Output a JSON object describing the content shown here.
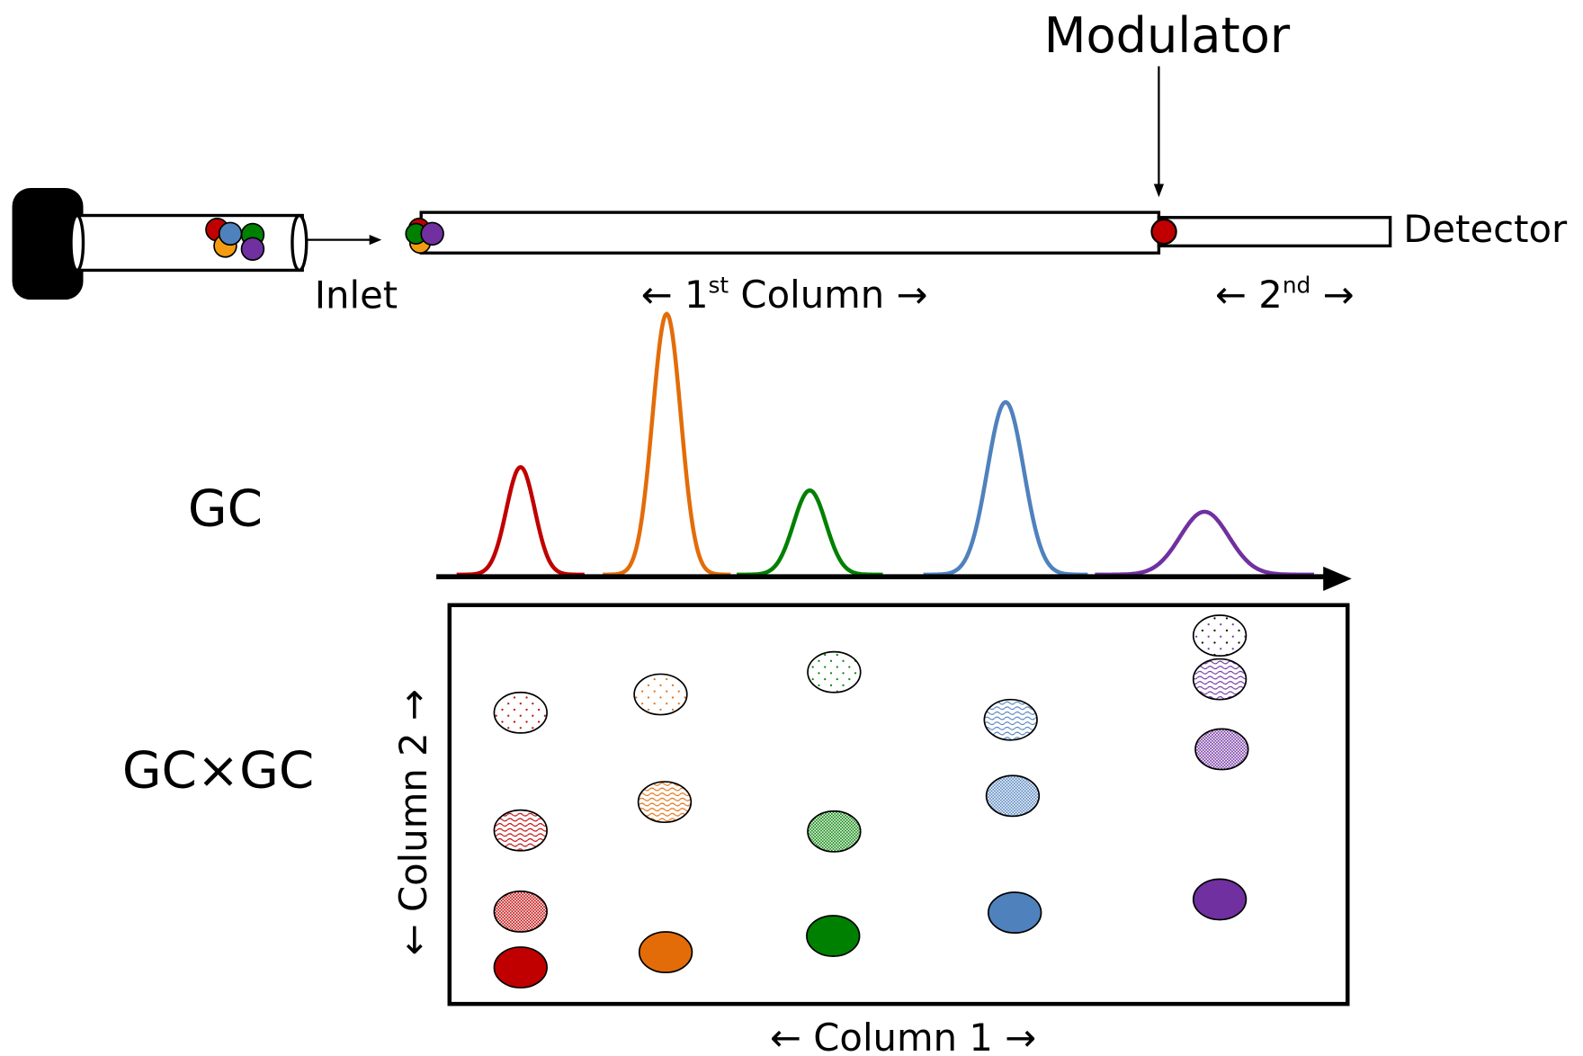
{
  "labels": {
    "modulator": "Modulator",
    "detector": "Detector",
    "inlet": "Inlet",
    "first_column": {
      "before": "← 1",
      "sup": "st",
      "after": " Column →"
    },
    "second_column": {
      "before": "← 2",
      "sup": "nd",
      "after": " →"
    },
    "gc": "GC",
    "gcxgc": "GC×GC",
    "column_2_axis": "← Column 2 →",
    "column_1_axis": "← Column 1 →"
  }
}
